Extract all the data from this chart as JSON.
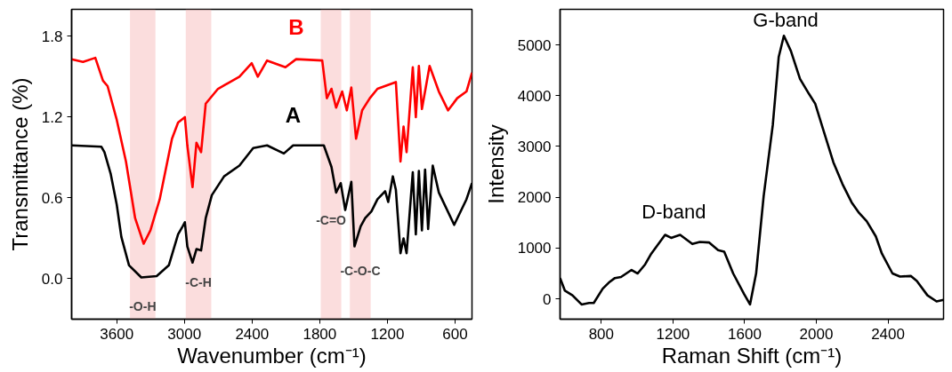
{
  "chart_data": [
    {
      "type": "line",
      "xlabel": "Wavenumber (cm⁻¹)",
      "ylabel": "Transmittance (%)",
      "xlim": [
        4000,
        450
      ],
      "ylim": [
        -0.3,
        2.0
      ],
      "xticks": [
        3600,
        3000,
        2400,
        1800,
        1200,
        600
      ],
      "yticks": [
        {
          "value": 0,
          "label": "0.0"
        },
        {
          "value": 0.6,
          "label": "0.6"
        },
        {
          "value": 1.2,
          "label": "1.2"
        },
        {
          "value": 1.8,
          "label": "1.8"
        }
      ],
      "grid": false,
      "marker": "none",
      "line_style": "solid",
      "series": [
        {
          "name": "A",
          "color": "#000000",
          "x": [
            4000,
            3736,
            3709,
            3654,
            3600,
            3559,
            3491,
            3382,
            3246,
            3138,
            3056,
            3015,
            2996,
            2974,
            2928,
            2893,
            2852,
            2811,
            2757,
            2648,
            2512,
            2390,
            2267,
            2118,
            2036,
            1764,
            1696,
            1655,
            1614,
            1574,
            1520,
            1492,
            1437,
            1397,
            1342,
            1288,
            1220,
            1193,
            1152,
            1125,
            1084,
            1057,
            1030,
            975,
            948,
            921,
            894,
            866,
            839,
            798,
            744,
            608,
            499,
            450
          ],
          "values": [
            0.99,
            0.98,
            0.94,
            0.78,
            0.55,
            0.31,
            0.1,
            0.01,
            0.02,
            0.1,
            0.33,
            0.39,
            0.42,
            0.24,
            0.12,
            0.22,
            0.21,
            0.45,
            0.62,
            0.76,
            0.84,
            0.97,
            0.99,
            0.93,
            0.99,
            0.99,
            0.83,
            0.64,
            0.71,
            0.51,
            0.72,
            0.24,
            0.39,
            0.45,
            0.5,
            0.59,
            0.65,
            0.57,
            0.76,
            0.66,
            0.19,
            0.3,
            0.19,
            0.79,
            0.33,
            0.8,
            0.36,
            0.81,
            0.37,
            0.84,
            0.64,
            0.4,
            0.59,
            0.71
          ]
        },
        {
          "name": "B",
          "color": "#ff0000",
          "x": [
            4000,
            3899,
            3790,
            3722,
            3681,
            3600,
            3518,
            3437,
            3361,
            3301,
            3219,
            3110,
            3056,
            2996,
            2974,
            2928,
            2893,
            2852,
            2811,
            2702,
            2512,
            2403,
            2349,
            2267,
            2104,
            2009,
            1778,
            1737,
            1696,
            1655,
            1601,
            1560,
            1520,
            1478,
            1424,
            1356,
            1288,
            1125,
            1084,
            1057,
            1030,
            975,
            948,
            921,
            894,
            826,
            744,
            662,
            581,
            499,
            450
          ],
          "values": [
            1.63,
            1.61,
            1.64,
            1.47,
            1.43,
            1.18,
            0.87,
            0.45,
            0.26,
            0.36,
            0.59,
            1.04,
            1.16,
            1.2,
            0.99,
            0.68,
            1.01,
            0.94,
            1.3,
            1.41,
            1.5,
            1.6,
            1.5,
            1.62,
            1.57,
            1.63,
            1.62,
            1.34,
            1.41,
            1.27,
            1.39,
            1.25,
            1.42,
            1.04,
            1.25,
            1.34,
            1.41,
            1.46,
            0.87,
            1.13,
            0.94,
            1.57,
            1.2,
            1.58,
            1.26,
            1.58,
            1.39,
            1.25,
            1.34,
            1.39,
            1.53
          ]
        }
      ],
      "bands": [
        {
          "axis": "x",
          "from": 3483,
          "to": 3257,
          "label": "-O-H",
          "color": "#f7b3b3"
        },
        {
          "axis": "x",
          "from": 2988,
          "to": 2762,
          "label": "-C-H",
          "color": "#f7b3b3"
        },
        {
          "axis": "x",
          "from": 1791,
          "to": 1609,
          "label": "-C=O",
          "color": "#f7b3b3"
        },
        {
          "axis": "x",
          "from": 1533,
          "to": 1348,
          "label": "-C-O-C",
          "color": "#f7b3b3"
        }
      ]
    },
    {
      "type": "line",
      "xlabel": "Raman Shift (cm⁻¹)",
      "ylabel": "Intensity",
      "xlim": [
        570,
        2710
      ],
      "ylim": [
        -400,
        5700
      ],
      "xticks": [
        800,
        1200,
        1600,
        2000,
        2400
      ],
      "yticks": [
        0,
        1000,
        2000,
        3000,
        4000,
        5000
      ],
      "grid": false,
      "marker": "none",
      "line_style": "solid",
      "series": [
        {
          "color": "#000000",
          "x": [
            570,
            597,
            639,
            690,
            732,
            758,
            808,
            842,
            876,
            910,
            969,
            1003,
            1045,
            1079,
            1156,
            1190,
            1240,
            1308,
            1350,
            1401,
            1452,
            1486,
            1536,
            1596,
            1630,
            1664,
            1706,
            1757,
            1790,
            1819,
            1858,
            1909,
            1960,
            1994,
            2036,
            2095,
            2146,
            2197,
            2239,
            2281,
            2332,
            2366,
            2425,
            2467,
            2527,
            2561,
            2620,
            2671,
            2710
          ],
          "values": [
            410,
            160,
            70,
            -110,
            -80,
            -80,
            200,
            320,
            410,
            430,
            570,
            500,
            680,
            890,
            1260,
            1200,
            1260,
            1080,
            1120,
            1110,
            960,
            930,
            500,
            100,
            -110,
            500,
            2020,
            3420,
            4760,
            5180,
            4880,
            4330,
            4030,
            3840,
            3360,
            2690,
            2260,
            1900,
            1690,
            1530,
            1230,
            890,
            500,
            440,
            450,
            350,
            70,
            -50,
            -20
          ]
        }
      ],
      "annotations": [
        {
          "text": "G-band",
          "x": 1819,
          "y": 5180
        },
        {
          "text": "D-band",
          "x": 1240,
          "y": 1260
        }
      ]
    }
  ]
}
